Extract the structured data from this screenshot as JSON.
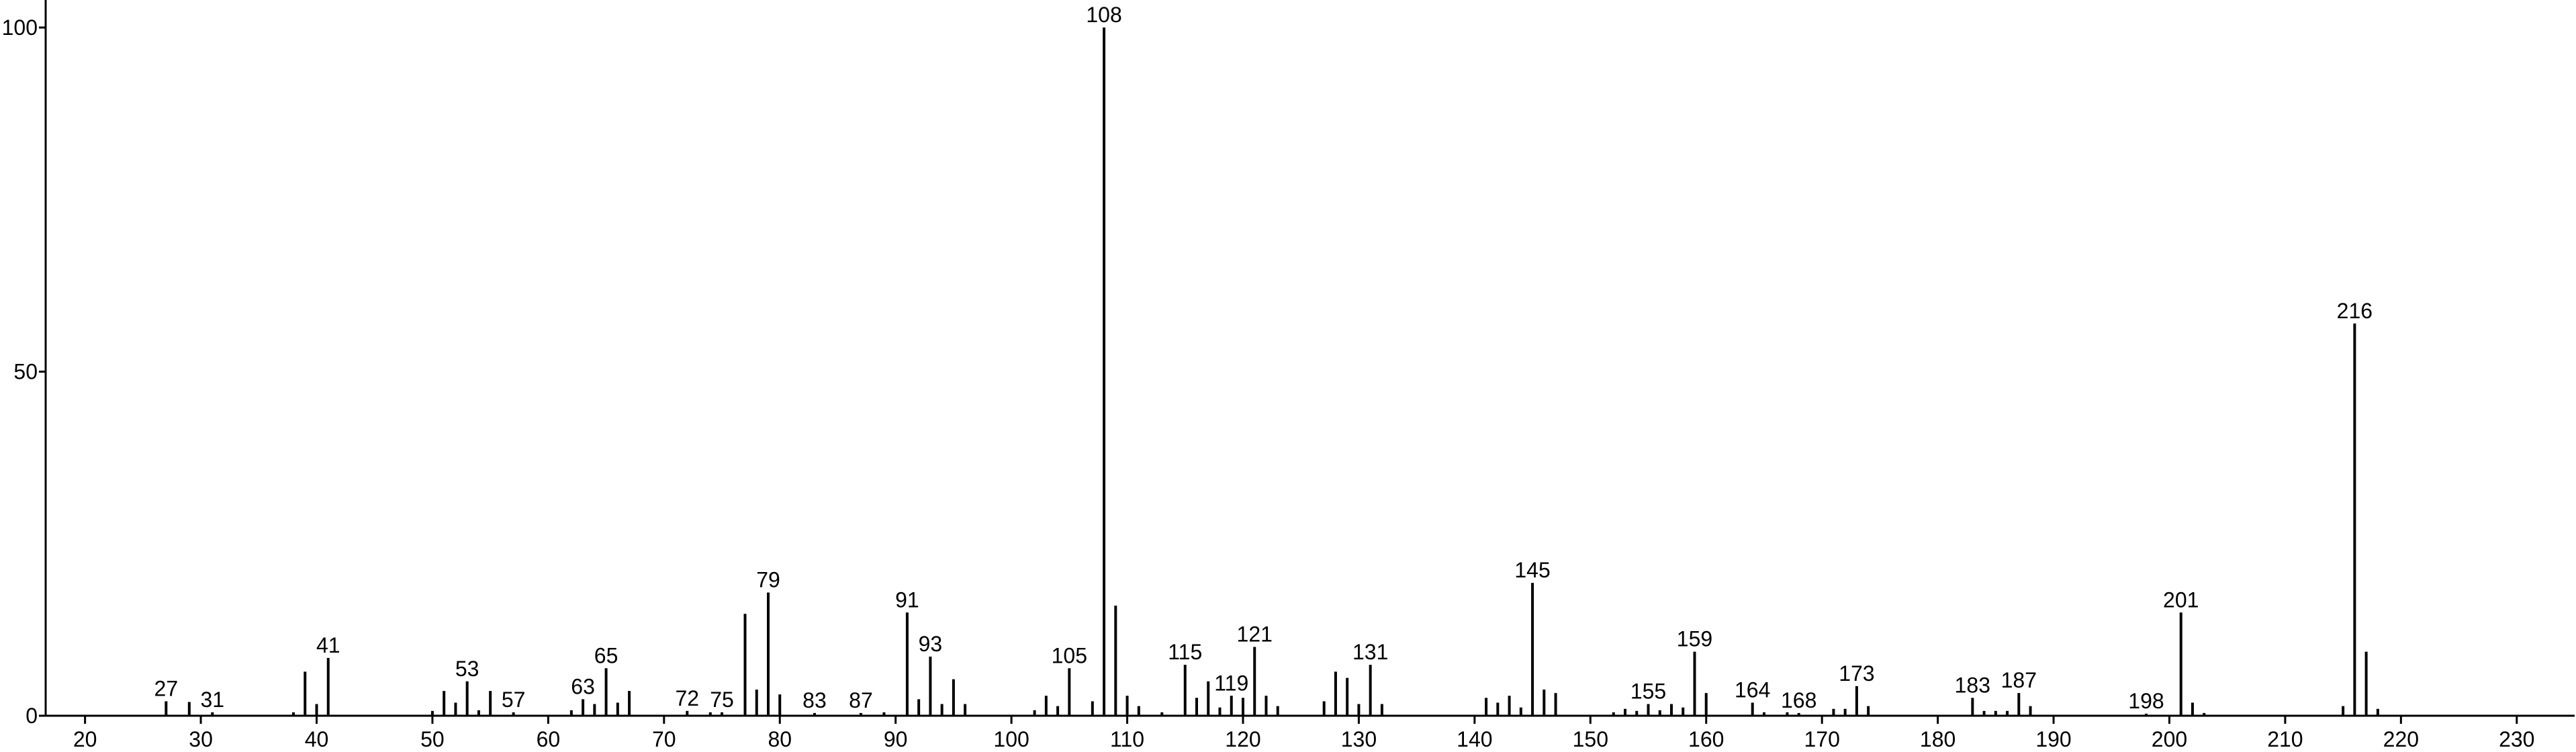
{
  "chart_data": {
    "type": "spectrum",
    "color": "#000000",
    "x": [
      27,
      29,
      31,
      38,
      39,
      40,
      41,
      50,
      51,
      52,
      53,
      54,
      55,
      57,
      62,
      63,
      64,
      65,
      66,
      67,
      72,
      74,
      75,
      77,
      78,
      79,
      80,
      83,
      87,
      89,
      91,
      92,
      93,
      94,
      95,
      96,
      102,
      103,
      104,
      105,
      107,
      108,
      109,
      110,
      111,
      113,
      115,
      116,
      117,
      118,
      119,
      120,
      121,
      122,
      123,
      127,
      128,
      129,
      130,
      131,
      132,
      141,
      142,
      143,
      144,
      145,
      146,
      147,
      152,
      153,
      154,
      155,
      156,
      157,
      158,
      159,
      160,
      164,
      165,
      167,
      168,
      171,
      172,
      173,
      174,
      183,
      184,
      185,
      186,
      187,
      188,
      198,
      201,
      202,
      203,
      215,
      216,
      217,
      218
    ],
    "values": [
      2.1,
      2,
      0.5,
      0.5,
      6.4,
      1.7,
      8.4,
      0.7,
      3.6,
      1.9,
      5,
      0.8,
      3.6,
      0.5,
      0.8,
      2.4,
      1.7,
      6.9,
      1.9,
      3.6,
      0.7,
      0.5,
      0.5,
      14.8,
      3.8,
      17.9,
      3.1,
      0.4,
      0.4,
      0.5,
      15,
      2.4,
      8.6,
      1.7,
      5.3,
      1.7,
      0.8,
      2.9,
      1.4,
      6.9,
      2.1,
      100,
      16,
      2.9,
      1.4,
      0.5,
      7.4,
      2.6,
      5,
      1.2,
      2.9,
      2.6,
      10,
      2.9,
      1.4,
      2.1,
      6.4,
      5.5,
      1.7,
      7.4,
      1.7,
      2.6,
      1.9,
      2.9,
      1.2,
      19.3,
      3.8,
      3.3,
      0.5,
      1,
      0.7,
      1.7,
      0.8,
      1.7,
      1.2,
      9.3,
      3.3,
      1.9,
      0.5,
      0.5,
      0.4,
      1,
      1,
      4.3,
      1.4,
      2.6,
      0.7,
      0.7,
      0.7,
      3.3,
      1.4,
      0.3,
      15,
      1.9,
      0.4,
      1.4,
      57,
      9.3,
      1
    ],
    "labels": [
      27,
      null,
      31,
      null,
      null,
      null,
      41,
      null,
      null,
      null,
      53,
      null,
      null,
      57,
      null,
      63,
      null,
      65,
      null,
      null,
      72,
      null,
      75,
      null,
      null,
      79,
      null,
      83,
      87,
      null,
      91,
      null,
      93,
      null,
      null,
      null,
      null,
      null,
      null,
      105,
      null,
      108,
      null,
      null,
      null,
      null,
      115,
      null,
      null,
      null,
      119,
      null,
      121,
      null,
      null,
      null,
      null,
      null,
      null,
      131,
      null,
      null,
      null,
      null,
      null,
      145,
      null,
      null,
      null,
      null,
      null,
      155,
      null,
      null,
      null,
      159,
      null,
      164,
      null,
      null,
      168,
      null,
      null,
      173,
      null,
      183,
      null,
      null,
      null,
      187,
      null,
      198,
      201,
      null,
      null,
      null,
      216,
      null,
      null
    ],
    "xlim": [
      16.6,
      235
    ],
    "ylim": [
      0,
      104
    ],
    "xticks": [
      20,
      30,
      40,
      50,
      60,
      70,
      80,
      90,
      100,
      110,
      120,
      130,
      140,
      150,
      160,
      170,
      180,
      190,
      200,
      210,
      220,
      230
    ],
    "yticks": [
      0,
      50,
      100
    ]
  }
}
